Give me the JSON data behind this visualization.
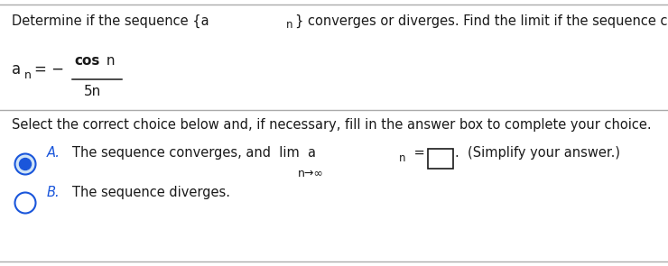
{
  "bg_color": "#ffffff",
  "text_color": "#1a1a1a",
  "blue_color": "#1a56db",
  "gray_color": "#aaaaaa",
  "title_line": "Determine if the sequence {a",
  "title_sub": "n",
  "title_line2": "} converges or diverges. Find the limit if the sequence converges.",
  "select_line": "Select the correct choice below and, if necessary, fill in the answer box to complete your choice.",
  "choice_a_prefix": "The sequence converges, and  lim  a",
  "choice_a_sub": "n",
  "choice_a_suffix": " =",
  "choice_a_simplify": "  (Simplify your answer.)",
  "choice_a_nsub": "n→∞",
  "label_a": "A.",
  "label_b": "B.",
  "choice_b_text": "The sequence diverges.",
  "cos_bold": "cos",
  "cos_normal": " n",
  "den": "5n"
}
